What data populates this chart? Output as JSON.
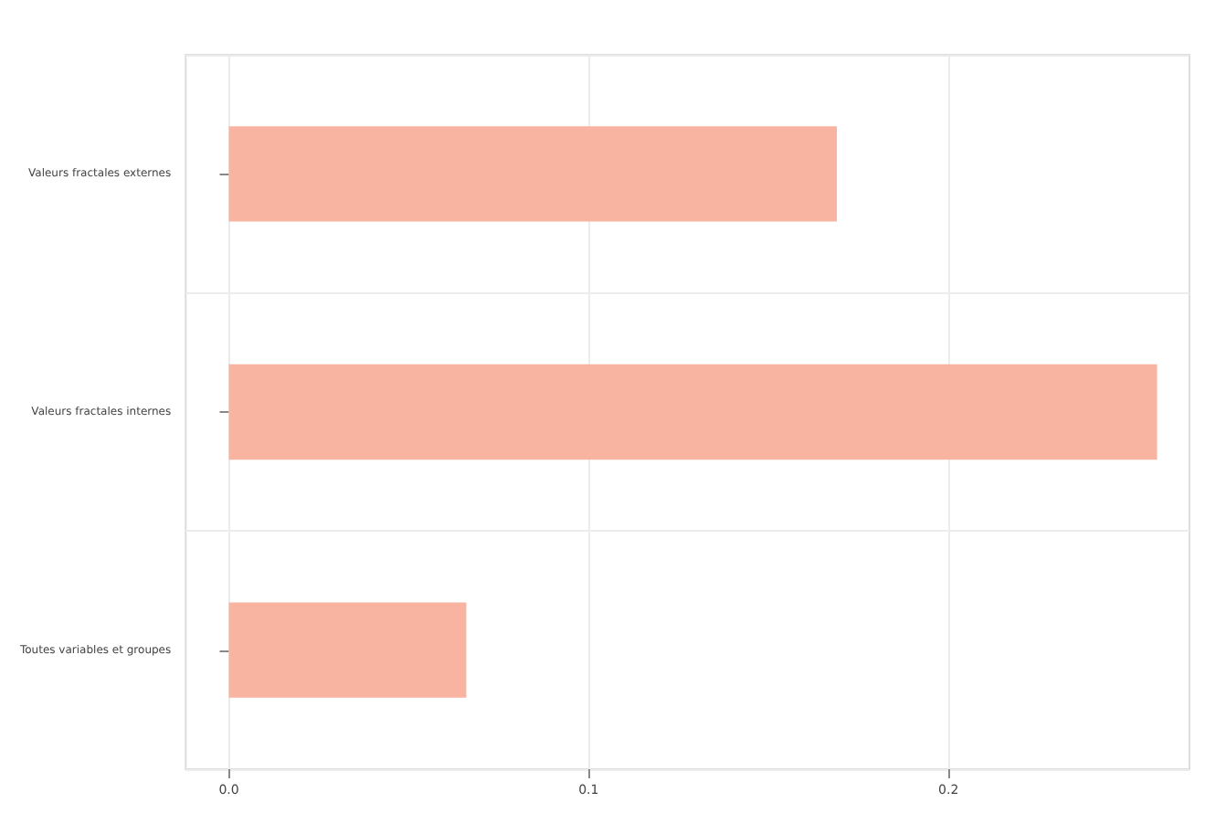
{
  "chart_data": {
    "type": "bar",
    "orientation": "horizontal",
    "categories": [
      "Valeurs fractales externes",
      "Valeurs fractales internes",
      "Toutes variables et groupes"
    ],
    "values": [
      0.169,
      0.258,
      0.066
    ],
    "color": "#f8b4a0",
    "xlim": [
      -0.012,
      0.267
    ],
    "xticks": [
      {
        "value": 0,
        "label": "0.0"
      },
      {
        "value": 0.1,
        "label": "0.1"
      },
      {
        "value": 0.2,
        "label": "0.2"
      }
    ],
    "grid": true
  }
}
